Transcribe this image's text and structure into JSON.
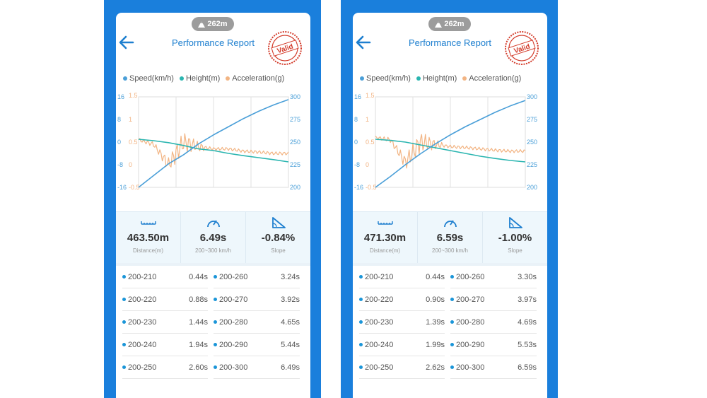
{
  "colors": {
    "frame": "#1a7fdc",
    "speed": "#4a9fd8",
    "height": "#2ab5b0",
    "acceleration": "#f2b483",
    "title": "#1e7fcf",
    "stamp": "#d33b2a"
  },
  "panels": [
    {
      "altitude": "262m",
      "title": "Performance Report",
      "stamp_text": "Valid",
      "legend": {
        "speed": "Speed(km/h)",
        "height": "Height(m)",
        "acceleration": "Acceleration(g)"
      },
      "stats": {
        "distance": {
          "value": "463.50m",
          "label": "Distance(m)"
        },
        "time": {
          "value": "6.49s",
          "label": "200~300 km/h"
        },
        "slope": {
          "value": "-0.84%",
          "label": "Slope"
        }
      },
      "splits": [
        {
          "l_label": "200-210",
          "l_value": "0.44s",
          "r_label": "200-260",
          "r_value": "3.24s"
        },
        {
          "l_label": "200-220",
          "l_value": "0.88s",
          "r_label": "200-270",
          "r_value": "3.92s"
        },
        {
          "l_label": "200-230",
          "l_value": "1.44s",
          "r_label": "200-280",
          "r_value": "4.65s"
        },
        {
          "l_label": "200-240",
          "l_value": "1.94s",
          "r_label": "200-290",
          "r_value": "5.44s"
        },
        {
          "l_label": "200-250",
          "l_value": "2.60s",
          "r_label": "200-300",
          "r_value": "6.49s"
        }
      ]
    },
    {
      "altitude": "262m",
      "title": "Performance Report",
      "stamp_text": "Valid",
      "legend": {
        "speed": "Speed(km/h)",
        "height": "Height(m)",
        "acceleration": "Acceleration(g)"
      },
      "stats": {
        "distance": {
          "value": "471.30m",
          "label": "Distance(m)"
        },
        "time": {
          "value": "6.59s",
          "label": "200~300 km/h"
        },
        "slope": {
          "value": "-1.00%",
          "label": "Slope"
        }
      },
      "splits": [
        {
          "l_label": "200-210",
          "l_value": "0.44s",
          "r_label": "200-260",
          "r_value": "3.30s"
        },
        {
          "l_label": "200-220",
          "l_value": "0.90s",
          "r_label": "200-270",
          "r_value": "3.97s"
        },
        {
          "l_label": "200-230",
          "l_value": "1.39s",
          "r_label": "200-280",
          "r_value": "4.69s"
        },
        {
          "l_label": "200-240",
          "l_value": "1.99s",
          "r_label": "200-290",
          "r_value": "5.53s"
        },
        {
          "l_label": "200-250",
          "l_value": "2.62s",
          "r_label": "200-300",
          "r_value": "6.59s"
        }
      ]
    }
  ],
  "chart_data": [
    {
      "type": "line",
      "height_ticks": [
        "16",
        "8",
        "0",
        "-8",
        "-16"
      ],
      "accel_ticks": [
        "1.5",
        "1",
        "0.5",
        "0",
        "-0.5"
      ],
      "speed_ticks": [
        "300",
        "275",
        "250",
        "225",
        "200"
      ],
      "ylim_speed": [
        200,
        300
      ],
      "ylim_height": [
        -16,
        16
      ],
      "ylim_accel": [
        -0.5,
        1.5
      ],
      "x": [
        0,
        0.1,
        0.2,
        0.3,
        0.4,
        0.5,
        0.6,
        0.7,
        0.8,
        0.9,
        1.0
      ],
      "series": [
        {
          "name": "Speed(km/h)",
          "axis": "speed",
          "values": [
            200,
            213,
            226,
            236,
            248,
            258,
            267,
            276,
            284,
            291,
            297
          ]
        },
        {
          "name": "Height(m)",
          "axis": "height",
          "values": [
            1,
            0.5,
            -0.2,
            -1.2,
            -2.4,
            -3,
            -4,
            -4.8,
            -5.5,
            -6.2,
            -7
          ]
        },
        {
          "name": "Acceleration(g)",
          "axis": "accel",
          "values": [
            0.55,
            0.45,
            0.0,
            0.5,
            0.4,
            0.35,
            0.35,
            0.3,
            0.28,
            0.25,
            0.25
          ]
        }
      ]
    },
    {
      "type": "line",
      "height_ticks": [
        "16",
        "8",
        "0",
        "-8",
        "-16"
      ],
      "accel_ticks": [
        "1.5",
        "1",
        "0.5",
        "0",
        "-0.5"
      ],
      "speed_ticks": [
        "300",
        "275",
        "250",
        "225",
        "200"
      ],
      "ylim_speed": [
        200,
        300
      ],
      "ylim_height": [
        -16,
        16
      ],
      "ylim_accel": [
        -0.5,
        1.5
      ],
      "x": [
        0,
        0.1,
        0.2,
        0.3,
        0.4,
        0.5,
        0.6,
        0.7,
        0.8,
        0.9,
        1.0
      ],
      "series": [
        {
          "name": "Speed(km/h)",
          "axis": "speed",
          "values": [
            200,
            212,
            225,
            237,
            248,
            258,
            267,
            275,
            283,
            290,
            296
          ]
        },
        {
          "name": "Height(m)",
          "axis": "height",
          "values": [
            1,
            0.6,
            0,
            -1,
            -2,
            -3,
            -4,
            -5,
            -5.8,
            -6.5,
            -7
          ]
        },
        {
          "name": "Acceleration(g)",
          "axis": "accel",
          "values": [
            0.6,
            0.55,
            0.05,
            0.5,
            0.45,
            0.4,
            0.38,
            0.35,
            0.32,
            0.3,
            0.3
          ]
        }
      ]
    }
  ]
}
